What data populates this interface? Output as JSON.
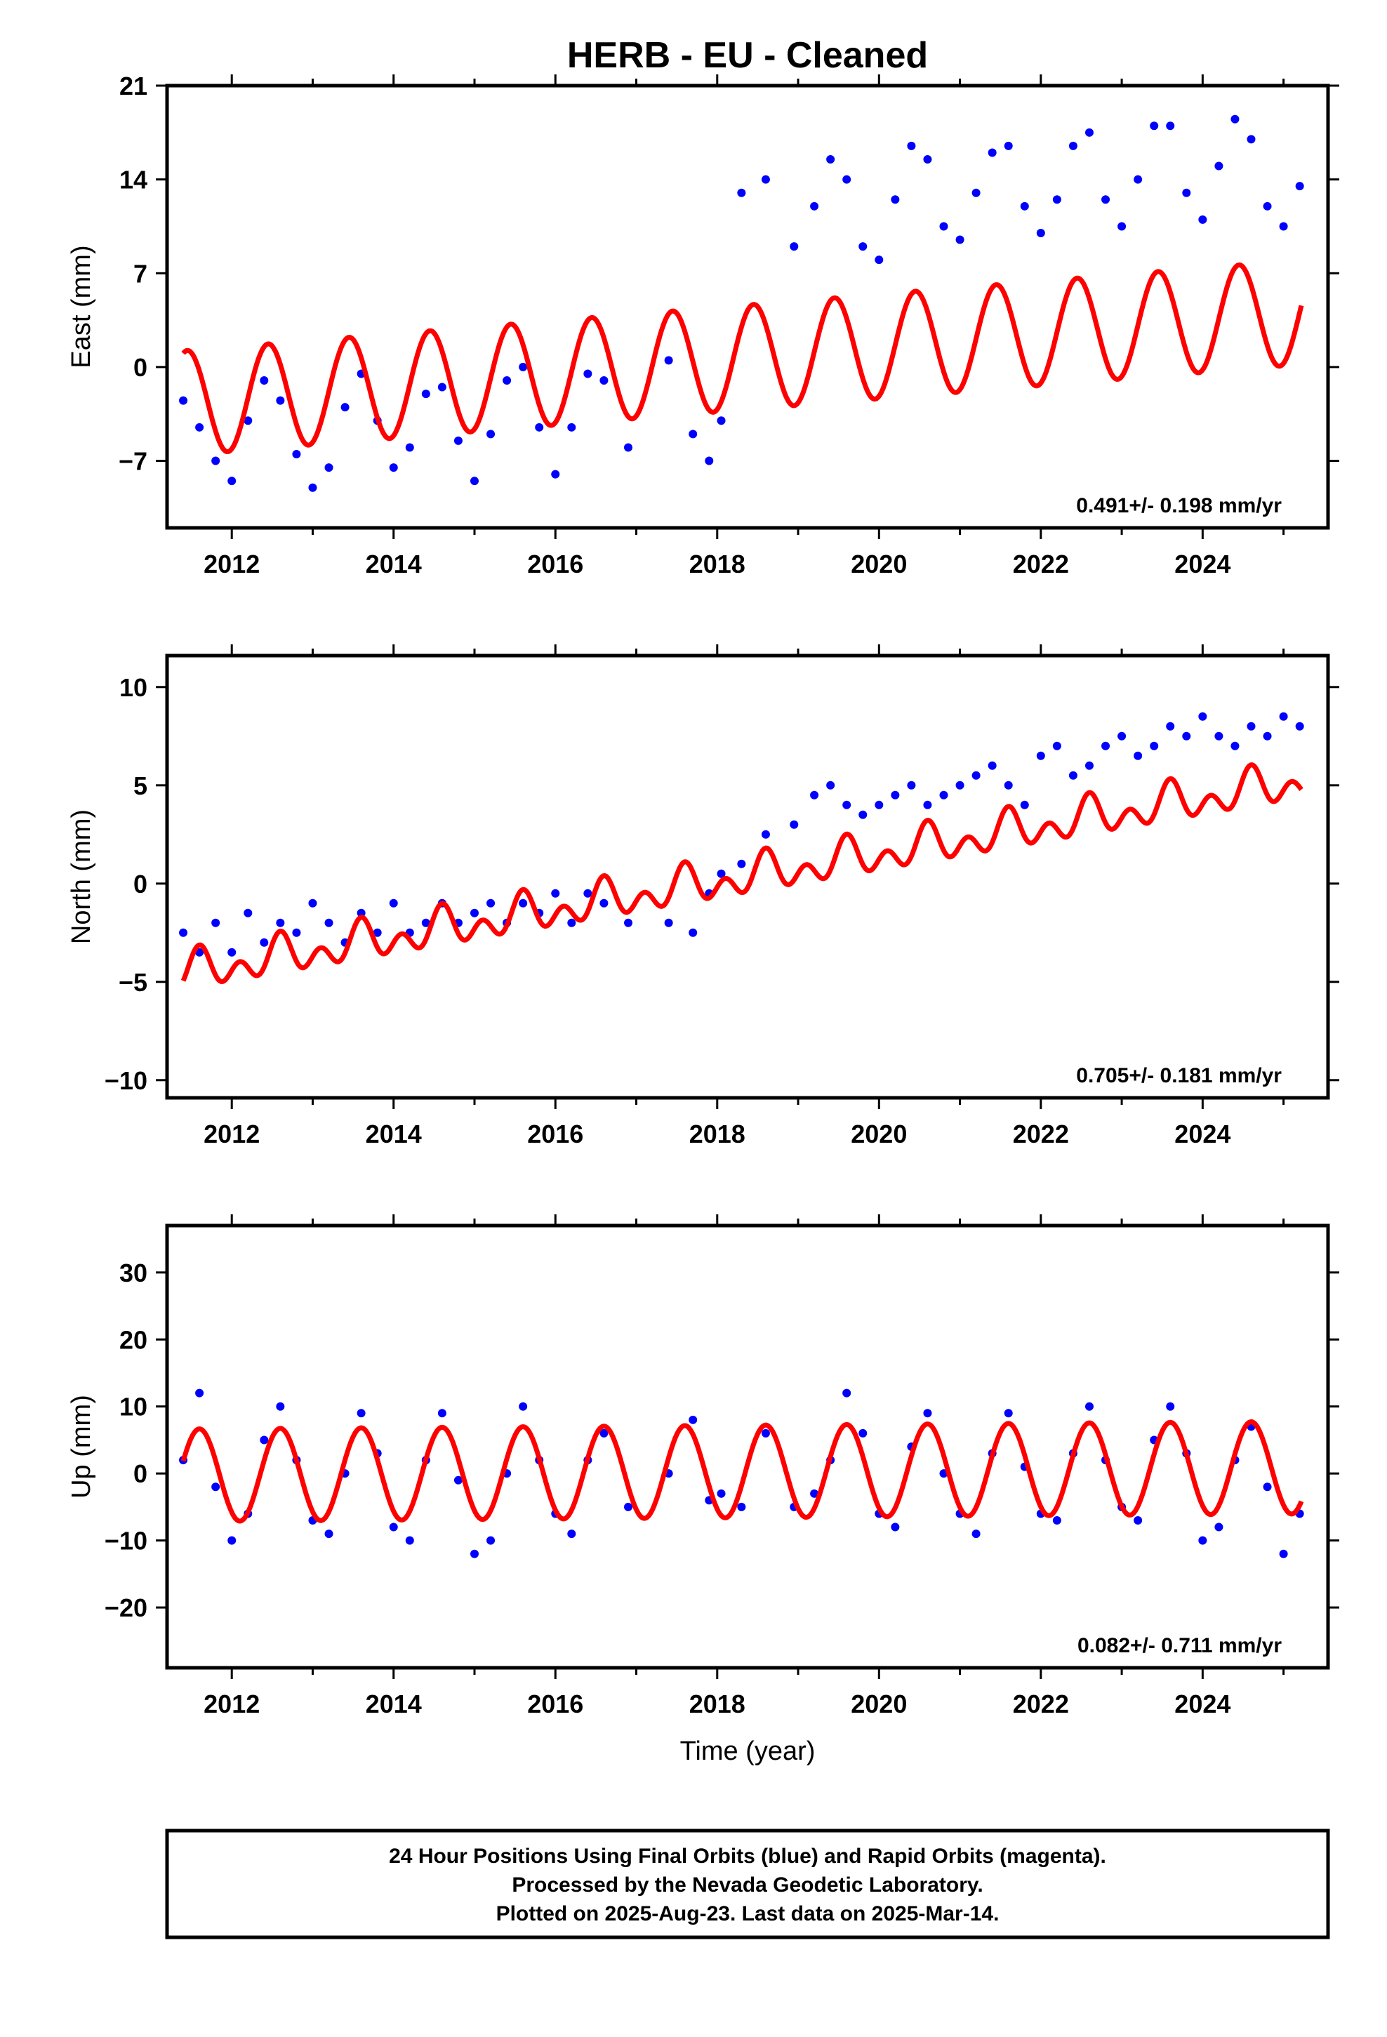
{
  "title": "HERB  - EU - Cleaned",
  "x_axis": {
    "label": "Time (year)",
    "range": [
      2011.2,
      2025.55
    ],
    "ticks": [
      2012,
      2014,
      2016,
      2018,
      2020,
      2022,
      2024
    ],
    "tick_labels": [
      "2012",
      "2014",
      "2016",
      "2018",
      "2020",
      "2022",
      "2024"
    ]
  },
  "colors": {
    "observations": "#0000ff",
    "model": "#ff0000",
    "frame": "#000000"
  },
  "chart_data": [
    {
      "type": "scatter",
      "component": "east",
      "ylabel": "East (mm)",
      "ylim": [
        -12,
        21
      ],
      "yticks": [
        -7,
        0,
        7,
        14,
        21
      ],
      "ytick_labels": [
        "−7",
        "0",
        "7",
        "14",
        "21"
      ],
      "rate_text": "0.491+/- 0.198 mm/yr",
      "grid": false,
      "series": [
        {
          "kind": "observations",
          "x": [
            2011.4,
            2011.6,
            2011.8,
            2012.0,
            2012.2,
            2012.4,
            2012.6,
            2012.8,
            2013.0,
            2013.2,
            2013.4,
            2013.6,
            2013.8,
            2014.0,
            2014.2,
            2014.4,
            2014.6,
            2014.8,
            2015.0,
            2015.2,
            2015.4,
            2015.6,
            2015.8,
            2016.0,
            2016.2,
            2016.4,
            2016.6,
            2016.9,
            2017.4,
            2017.7,
            2017.9,
            2018.05,
            2018.3,
            2018.6,
            2018.95,
            2019.2,
            2019.4,
            2019.6,
            2019.8,
            2020.0,
            2020.2,
            2020.4,
            2020.6,
            2020.8,
            2021.0,
            2021.2,
            2021.4,
            2021.6,
            2021.8,
            2022.0,
            2022.2,
            2022.4,
            2022.6,
            2022.8,
            2023.0,
            2023.2,
            2023.4,
            2023.6,
            2023.8,
            2024.0,
            2024.2,
            2024.4,
            2024.6,
            2024.8,
            2025.0,
            2025.2
          ],
          "y": [
            -2.5,
            -4.5,
            -7.0,
            -8.5,
            -4.0,
            -1.0,
            -2.5,
            -6.5,
            -9.0,
            -7.5,
            -3.0,
            -0.5,
            -4.0,
            -7.5,
            -6.0,
            -2.0,
            -1.5,
            -5.5,
            -8.5,
            -5.0,
            -1.0,
            0.0,
            -4.5,
            -8.0,
            -4.5,
            -0.5,
            -1.0,
            -6.0,
            0.5,
            -5.0,
            -7.0,
            -4.0,
            13.0,
            14.0,
            9.0,
            12.0,
            15.5,
            14.0,
            9.0,
            8.0,
            12.5,
            16.5,
            15.5,
            10.5,
            9.5,
            13.0,
            16.0,
            16.5,
            12.0,
            10.0,
            12.5,
            16.5,
            17.5,
            12.5,
            10.5,
            14.0,
            18.0,
            18.0,
            13.0,
            11.0,
            15.0,
            18.5,
            17.0,
            12.0,
            10.5,
            13.5
          ]
        },
        {
          "kind": "model",
          "mean": 0.7,
          "trend_mm_per_yr": 0.491,
          "annual_amp": 3.9,
          "annual_phase_peak_year_fraction": 0.45,
          "semiannual_amp": 0.0
        }
      ]
    },
    {
      "type": "scatter",
      "component": "north",
      "ylabel": "North (mm)",
      "ylim": [
        -10.9,
        11.6
      ],
      "yticks": [
        -10,
        -5,
        0,
        5,
        10
      ],
      "ytick_labels": [
        "−10",
        "−5",
        "0",
        "5",
        "10"
      ],
      "rate_text": "0.705+/- 0.181 mm/yr",
      "grid": false,
      "series": [
        {
          "kind": "observations",
          "x": [
            2011.4,
            2011.6,
            2011.8,
            2012.0,
            2012.2,
            2012.4,
            2012.6,
            2012.8,
            2013.0,
            2013.2,
            2013.4,
            2013.6,
            2013.8,
            2014.0,
            2014.2,
            2014.4,
            2014.6,
            2014.8,
            2015.0,
            2015.2,
            2015.4,
            2015.6,
            2015.8,
            2016.0,
            2016.2,
            2016.4,
            2016.6,
            2016.9,
            2017.4,
            2017.7,
            2017.9,
            2018.05,
            2018.3,
            2018.6,
            2018.95,
            2019.2,
            2019.4,
            2019.6,
            2019.8,
            2020.0,
            2020.2,
            2020.4,
            2020.6,
            2020.8,
            2021.0,
            2021.2,
            2021.4,
            2021.6,
            2021.8,
            2022.0,
            2022.2,
            2022.4,
            2022.6,
            2022.8,
            2023.0,
            2023.2,
            2023.4,
            2023.6,
            2023.8,
            2024.0,
            2024.2,
            2024.4,
            2024.6,
            2024.8,
            2025.0,
            2025.2
          ],
          "y": [
            -2.5,
            -3.5,
            -2.0,
            -3.5,
            -1.5,
            -3.0,
            -2.0,
            -2.5,
            -1.0,
            -2.0,
            -3.0,
            -1.5,
            -2.5,
            -1.0,
            -2.5,
            -2.0,
            -1.0,
            -2.0,
            -1.5,
            -1.0,
            -2.0,
            -1.0,
            -1.5,
            -0.5,
            -2.0,
            -0.5,
            -1.0,
            -2.0,
            -2.0,
            -2.5,
            -0.5,
            0.5,
            1.0,
            2.5,
            3.0,
            4.5,
            5.0,
            4.0,
            3.5,
            4.0,
            4.5,
            5.0,
            4.0,
            4.5,
            5.0,
            5.5,
            6.0,
            5.0,
            4.0,
            6.5,
            7.0,
            5.5,
            6.0,
            7.0,
            7.5,
            6.5,
            7.0,
            8.0,
            7.5,
            8.5,
            7.5,
            7.0,
            8.0,
            7.5,
            8.5,
            8.0
          ]
        },
        {
          "kind": "model",
          "mean": 0.3,
          "trend_mm_per_yr": 0.705,
          "annual_amp": 0.6,
          "annual_phase_peak_year_fraction": 0.6,
          "semiannual_amp": 0.7
        }
      ]
    },
    {
      "type": "scatter",
      "component": "up",
      "ylabel": "Up (mm)",
      "ylim": [
        -29,
        37
      ],
      "yticks": [
        -20,
        -10,
        0,
        10,
        20,
        30
      ],
      "ytick_labels": [
        "−20",
        "−10",
        "0",
        "10",
        "20",
        "30"
      ],
      "rate_text": "0.082+/- 0.711 mm/yr",
      "grid": false,
      "series": [
        {
          "kind": "observations",
          "x": [
            2011.4,
            2011.6,
            2011.8,
            2012.0,
            2012.2,
            2012.4,
            2012.6,
            2012.8,
            2013.0,
            2013.2,
            2013.4,
            2013.6,
            2013.8,
            2014.0,
            2014.2,
            2014.4,
            2014.6,
            2014.8,
            2015.0,
            2015.2,
            2015.4,
            2015.6,
            2015.8,
            2016.0,
            2016.2,
            2016.4,
            2016.6,
            2016.9,
            2017.4,
            2017.7,
            2017.9,
            2018.05,
            2018.3,
            2018.6,
            2018.95,
            2019.2,
            2019.4,
            2019.6,
            2019.8,
            2020.0,
            2020.2,
            2020.4,
            2020.6,
            2020.8,
            2021.0,
            2021.2,
            2021.4,
            2021.6,
            2021.8,
            2022.0,
            2022.2,
            2022.4,
            2022.6,
            2022.8,
            2023.0,
            2023.2,
            2023.4,
            2023.6,
            2023.8,
            2024.0,
            2024.2,
            2024.4,
            2024.6,
            2024.8,
            2025.0,
            2025.2
          ],
          "y": [
            2.0,
            12.0,
            -2.0,
            -10.0,
            -6.0,
            5.0,
            10.0,
            2.0,
            -7.0,
            -9.0,
            0.0,
            9.0,
            3.0,
            -8.0,
            -10.0,
            2.0,
            9.0,
            -1.0,
            -12.0,
            -10.0,
            0.0,
            10.0,
            2.0,
            -6.0,
            -9.0,
            2.0,
            6.0,
            -5.0,
            0.0,
            8.0,
            -4.0,
            -3.0,
            -5.0,
            6.0,
            -5.0,
            -3.0,
            2.0,
            12.0,
            6.0,
            -6.0,
            -8.0,
            4.0,
            9.0,
            0.0,
            -6.0,
            -9.0,
            3.0,
            9.0,
            1.0,
            -6.0,
            -7.0,
            3.0,
            10.0,
            2.0,
            -5.0,
            -7.0,
            5.0,
            10.0,
            3.0,
            -10.0,
            -8.0,
            2.0,
            7.0,
            -2.0,
            -12.0,
            -6.0
          ]
        },
        {
          "kind": "model",
          "mean": 0.3,
          "trend_mm_per_yr": 0.082,
          "annual_amp": 6.9,
          "annual_phase_peak_year_fraction": 0.6,
          "semiannual_amp": 0.0
        }
      ]
    }
  ],
  "footer": {
    "line1": "24 Hour Positions Using Final Orbits (blue) and Rapid Orbits (magenta).",
    "line2": "Processed by the Nevada Geodetic Laboratory.",
    "line3": "Plotted on 2025-Aug-23. Last data on 2025-Mar-14."
  }
}
